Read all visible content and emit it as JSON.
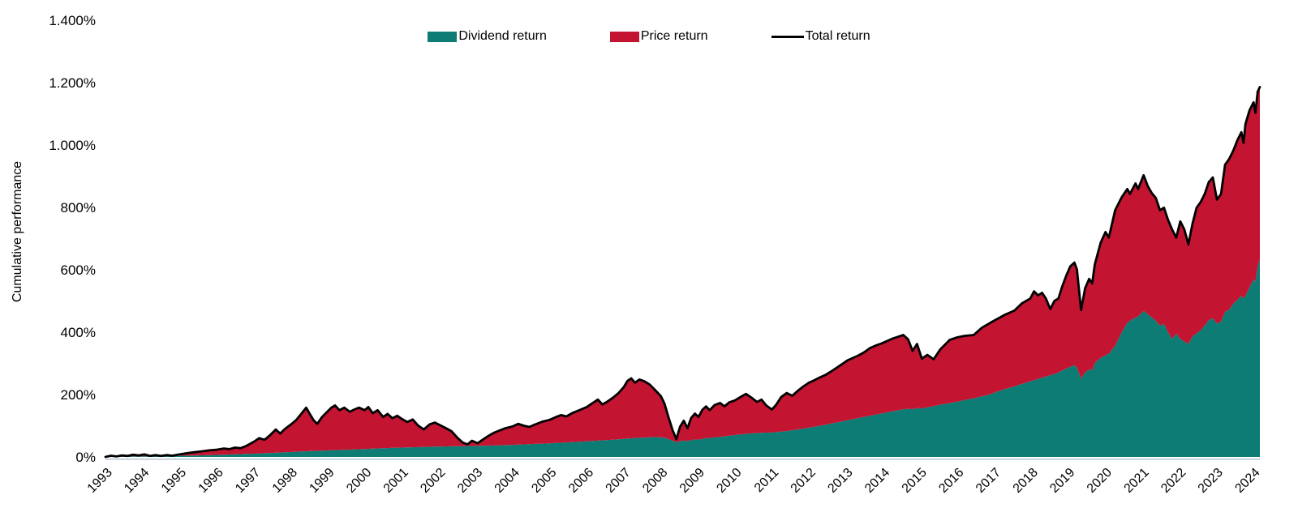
{
  "page": {
    "background": "#ffffff"
  },
  "legend": {
    "items": [
      {
        "label": "Dividend return",
        "color": "#0d7c74",
        "swatch": "box"
      },
      {
        "label": "Price return",
        "color": "#c31432",
        "swatch": "box"
      },
      {
        "label": "Total return",
        "color": "#000000",
        "swatch": "line"
      }
    ]
  },
  "axes": {
    "ylabel": "Cumulative performance",
    "y_tick_labels": [
      "0%",
      "200%",
      "400%",
      "600%",
      "800%",
      "1.000%",
      "1.200%",
      "1.400%"
    ],
    "x_tick_labels": [
      "1993",
      "1994",
      "1995",
      "1996",
      "1997",
      "1998",
      "1999",
      "2000",
      "2001",
      "2002",
      "2003",
      "2004",
      "2005",
      "2006",
      "2007",
      "2008",
      "2009",
      "2010",
      "2011",
      "2012",
      "2013",
      "2014",
      "2015",
      "2016",
      "2017",
      "2018",
      "2019",
      "2020",
      "2021",
      "2022",
      "2023",
      "2024"
    ]
  },
  "chart_data": {
    "type": "area",
    "stacked": true,
    "title": "",
    "xlabel": "",
    "ylabel": "Cumulative performance",
    "ylim": [
      0,
      1400
    ],
    "y_ticks_percent": [
      0,
      200,
      400,
      600,
      800,
      1000,
      1200,
      1400
    ],
    "x_range": [
      1993,
      2024.18
    ],
    "grid": false,
    "legend_position": "top-center",
    "series_names": [
      "Dividend return",
      "Price return",
      "Total return"
    ],
    "colors": {
      "dividend": "#0d7c74",
      "price": "#c31432",
      "total": "#000000",
      "baseline_axis": "#b9c7d8"
    },
    "series_note": "points are [year, dividend_return_pct, total_return_pct]; price return = total - dividend; dividend area stacked below price area; black line traces total",
    "points": [
      [
        1993.0,
        0,
        0
      ],
      [
        1993.15,
        0.3,
        4
      ],
      [
        1993.3,
        0.6,
        1.5
      ],
      [
        1993.45,
        1,
        5
      ],
      [
        1993.6,
        1.3,
        3
      ],
      [
        1993.75,
        1.7,
        7
      ],
      [
        1993.9,
        2,
        5
      ],
      [
        1994.05,
        2.2,
        8
      ],
      [
        1994.2,
        2.4,
        3.5
      ],
      [
        1994.35,
        2.6,
        6
      ],
      [
        1994.5,
        2.8,
        3.2
      ],
      [
        1994.65,
        3,
        6
      ],
      [
        1994.8,
        3.2,
        4
      ],
      [
        1995.0,
        3.6,
        8
      ],
      [
        1995.2,
        4.1,
        12
      ],
      [
        1995.4,
        4.6,
        15
      ],
      [
        1995.6,
        5.1,
        18
      ],
      [
        1995.8,
        5.7,
        21
      ],
      [
        1996.0,
        6.5,
        23
      ],
      [
        1996.2,
        7.2,
        27
      ],
      [
        1996.35,
        7.8,
        25
      ],
      [
        1996.5,
        8.4,
        30
      ],
      [
        1996.65,
        9,
        28
      ],
      [
        1996.8,
        9.7,
        35
      ],
      [
        1997.0,
        10.5,
        48
      ],
      [
        1997.15,
        11.2,
        60
      ],
      [
        1997.3,
        11.9,
        55
      ],
      [
        1997.45,
        12.7,
        70
      ],
      [
        1997.6,
        13.5,
        88
      ],
      [
        1997.72,
        14.1,
        75
      ],
      [
        1997.85,
        14.9,
        90
      ],
      [
        1998.0,
        15.7,
        103
      ],
      [
        1998.15,
        16.5,
        118
      ],
      [
        1998.3,
        17.3,
        140
      ],
      [
        1998.42,
        18,
        158
      ],
      [
        1998.52,
        18.6,
        138
      ],
      [
        1998.62,
        19,
        118
      ],
      [
        1998.72,
        19.4,
        106
      ],
      [
        1998.85,
        20.1,
        128
      ],
      [
        1999.0,
        20.7,
        146
      ],
      [
        1999.1,
        21.2,
        158
      ],
      [
        1999.2,
        21.7,
        165
      ],
      [
        1999.32,
        22.3,
        150
      ],
      [
        1999.45,
        22.9,
        158
      ],
      [
        1999.6,
        23.5,
        145
      ],
      [
        1999.72,
        24.1,
        152
      ],
      [
        1999.85,
        24.7,
        158
      ],
      [
        2000.0,
        25.5,
        150
      ],
      [
        2000.1,
        26,
        160
      ],
      [
        2000.22,
        26.6,
        140
      ],
      [
        2000.35,
        27.2,
        150
      ],
      [
        2000.5,
        27.9,
        128
      ],
      [
        2000.62,
        28.4,
        138
      ],
      [
        2000.75,
        29,
        124
      ],
      [
        2000.88,
        29.5,
        132
      ],
      [
        2001.0,
        30,
        122
      ],
      [
        2001.15,
        30.5,
        112
      ],
      [
        2001.3,
        31,
        120
      ],
      [
        2001.45,
        31.5,
        100
      ],
      [
        2001.6,
        31.9,
        88
      ],
      [
        2001.75,
        32.4,
        104
      ],
      [
        2001.9,
        32.9,
        110
      ],
      [
        2002.05,
        33.3,
        101
      ],
      [
        2002.2,
        33.7,
        92
      ],
      [
        2002.35,
        34.1,
        82
      ],
      [
        2002.5,
        34.4,
        62
      ],
      [
        2002.65,
        34.6,
        46
      ],
      [
        2002.78,
        34.7,
        40
      ],
      [
        2002.9,
        35,
        52
      ],
      [
        2003.05,
        35.2,
        44
      ],
      [
        2003.2,
        35.6,
        56
      ],
      [
        2003.35,
        36,
        68
      ],
      [
        2003.5,
        36.6,
        78
      ],
      [
        2003.65,
        37.2,
        85
      ],
      [
        2003.8,
        37.9,
        92
      ],
      [
        2004.0,
        38.7,
        98
      ],
      [
        2004.15,
        39.5,
        106
      ],
      [
        2004.3,
        40.2,
        100
      ],
      [
        2004.45,
        40.9,
        96
      ],
      [
        2004.6,
        41.7,
        104
      ],
      [
        2004.8,
        42.7,
        113
      ],
      [
        2005.0,
        43.7,
        119
      ],
      [
        2005.15,
        44.6,
        127
      ],
      [
        2005.3,
        45.5,
        134
      ],
      [
        2005.45,
        46.4,
        130
      ],
      [
        2005.6,
        47.4,
        140
      ],
      [
        2005.8,
        48.6,
        150
      ],
      [
        2006.0,
        49.9,
        160
      ],
      [
        2006.15,
        51.1,
        172
      ],
      [
        2006.3,
        52.3,
        184
      ],
      [
        2006.42,
        53.2,
        168
      ],
      [
        2006.55,
        54.1,
        177
      ],
      [
        2006.7,
        55.3,
        189
      ],
      [
        2006.85,
        56.5,
        204
      ],
      [
        2007.0,
        57.9,
        224
      ],
      [
        2007.1,
        58.9,
        244
      ],
      [
        2007.2,
        59.7,
        252
      ],
      [
        2007.3,
        60.4,
        238
      ],
      [
        2007.42,
        61.2,
        248
      ],
      [
        2007.55,
        62.1,
        243
      ],
      [
        2007.7,
        63,
        232
      ],
      [
        2007.85,
        63.7,
        214
      ],
      [
        2008.0,
        63,
        195
      ],
      [
        2008.1,
        61.5,
        171
      ],
      [
        2008.2,
        57.5,
        130
      ],
      [
        2008.32,
        52,
        85
      ],
      [
        2008.42,
        47,
        57
      ],
      [
        2008.52,
        50.5,
        97
      ],
      [
        2008.62,
        52.5,
        116
      ],
      [
        2008.72,
        51,
        92
      ],
      [
        2008.82,
        54,
        125
      ],
      [
        2008.92,
        56,
        139
      ],
      [
        2009.02,
        55,
        128
      ],
      [
        2009.12,
        58,
        151
      ],
      [
        2009.22,
        60,
        162
      ],
      [
        2009.32,
        61,
        150
      ],
      [
        2009.45,
        62.5,
        166
      ],
      [
        2009.6,
        64.5,
        173
      ],
      [
        2009.72,
        66,
        162
      ],
      [
        2009.85,
        68,
        175
      ],
      [
        2010.0,
        70,
        181
      ],
      [
        2010.15,
        72,
        192
      ],
      [
        2010.3,
        74,
        202
      ],
      [
        2010.45,
        75.5,
        190
      ],
      [
        2010.6,
        76.5,
        176
      ],
      [
        2010.72,
        77.5,
        184
      ],
      [
        2010.85,
        78,
        165
      ],
      [
        2011.0,
        78.5,
        152
      ],
      [
        2011.12,
        79.5,
        168
      ],
      [
        2011.25,
        81,
        192
      ],
      [
        2011.4,
        83,
        205
      ],
      [
        2011.55,
        85.5,
        196
      ],
      [
        2011.7,
        88,
        212
      ],
      [
        2011.85,
        91,
        226
      ],
      [
        2012.0,
        94,
        238
      ],
      [
        2012.15,
        97,
        246
      ],
      [
        2012.3,
        100,
        255
      ],
      [
        2012.45,
        103.5,
        263
      ],
      [
        2012.6,
        107,
        274
      ],
      [
        2012.75,
        110.5,
        286
      ],
      [
        2012.9,
        114,
        298
      ],
      [
        2013.05,
        118,
        310
      ],
      [
        2013.2,
        121.5,
        318
      ],
      [
        2013.35,
        125,
        326
      ],
      [
        2013.5,
        128.5,
        336
      ],
      [
        2013.65,
        132,
        349
      ],
      [
        2013.8,
        135.5,
        357
      ],
      [
        2013.95,
        139,
        363
      ],
      [
        2014.1,
        142.5,
        371
      ],
      [
        2014.25,
        146,
        379
      ],
      [
        2014.4,
        149.5,
        385
      ],
      [
        2014.55,
        152.5,
        391
      ],
      [
        2014.68,
        154.5,
        377
      ],
      [
        2014.8,
        153,
        340
      ],
      [
        2014.92,
        157,
        362
      ],
      [
        2015.05,
        155,
        315
      ],
      [
        2015.2,
        159,
        327
      ],
      [
        2015.37,
        163,
        313
      ],
      [
        2015.55,
        167.5,
        345
      ],
      [
        2015.8,
        172.5,
        375
      ],
      [
        2016.0,
        177,
        383
      ],
      [
        2016.2,
        182,
        388
      ],
      [
        2016.45,
        188,
        391
      ],
      [
        2016.67,
        194,
        414
      ],
      [
        2016.9,
        201,
        430
      ],
      [
        2017.1,
        210,
        443
      ],
      [
        2017.3,
        218,
        456
      ],
      [
        2017.55,
        226,
        469
      ],
      [
        2017.75,
        234,
        492
      ],
      [
        2017.98,
        242,
        508
      ],
      [
        2018.08,
        246,
        531
      ],
      [
        2018.19,
        250,
        518
      ],
      [
        2018.3,
        254,
        526
      ],
      [
        2018.4,
        258,
        508
      ],
      [
        2018.52,
        262,
        474
      ],
      [
        2018.63,
        266,
        500
      ],
      [
        2018.74,
        271,
        508
      ],
      [
        2018.84,
        277,
        546
      ],
      [
        2018.95,
        283,
        581
      ],
      [
        2019.06,
        289,
        611
      ],
      [
        2019.17,
        294,
        623
      ],
      [
        2019.24,
        286,
        601
      ],
      [
        2019.35,
        251,
        471
      ],
      [
        2019.46,
        271,
        541
      ],
      [
        2019.57,
        281,
        571
      ],
      [
        2019.65,
        277,
        556
      ],
      [
        2019.72,
        301,
        617
      ],
      [
        2019.88,
        318,
        687
      ],
      [
        2020.01,
        326,
        721
      ],
      [
        2020.1,
        331,
        703
      ],
      [
        2020.27,
        356,
        791
      ],
      [
        2020.45,
        400,
        833
      ],
      [
        2020.6,
        430,
        859
      ],
      [
        2020.67,
        436,
        843
      ],
      [
        2020.82,
        447,
        877
      ],
      [
        2020.89,
        450,
        859
      ],
      [
        2021.04,
        468,
        903
      ],
      [
        2021.15,
        458,
        869
      ],
      [
        2021.26,
        447,
        846
      ],
      [
        2021.37,
        436,
        830
      ],
      [
        2021.48,
        421,
        791
      ],
      [
        2021.59,
        426,
        799
      ],
      [
        2021.7,
        400,
        760
      ],
      [
        2021.81,
        378,
        729
      ],
      [
        2021.92,
        395,
        703
      ],
      [
        2022.03,
        378,
        755
      ],
      [
        2022.14,
        370,
        729
      ],
      [
        2022.25,
        362,
        681
      ],
      [
        2022.36,
        386,
        747
      ],
      [
        2022.47,
        396,
        799
      ],
      [
        2022.58,
        406,
        817
      ],
      [
        2022.69,
        421,
        843
      ],
      [
        2022.8,
        439,
        881
      ],
      [
        2022.91,
        444,
        896
      ],
      [
        2023.02,
        427,
        825
      ],
      [
        2023.13,
        434,
        843
      ],
      [
        2023.24,
        465,
        937
      ],
      [
        2023.35,
        472,
        955
      ],
      [
        2023.46,
        491,
        981
      ],
      [
        2023.57,
        503,
        1015
      ],
      [
        2023.68,
        517,
        1041
      ],
      [
        2023.74,
        508,
        1007
      ],
      [
        2023.79,
        516,
        1067
      ],
      [
        2023.9,
        543,
        1111
      ],
      [
        2024.01,
        569,
        1137
      ],
      [
        2024.06,
        561,
        1103
      ],
      [
        2024.12,
        611,
        1171
      ],
      [
        2024.18,
        632,
        1186
      ]
    ]
  }
}
